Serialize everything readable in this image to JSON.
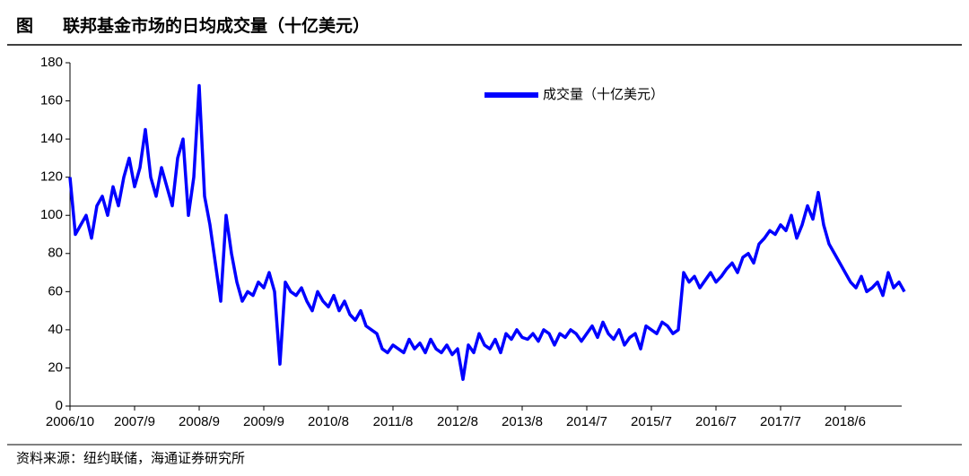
{
  "figure_label": "图",
  "source": "资料来源：纽约联储，海通证券研究所",
  "chart_data": {
    "type": "line",
    "title": "联邦基金市场的日均成交量（十亿美元）",
    "categories": [
      "2006/10",
      null,
      null,
      null,
      null,
      null,
      null,
      null,
      null,
      null,
      null,
      null,
      "2007/9",
      null,
      null,
      null,
      null,
      null,
      null,
      null,
      null,
      null,
      null,
      null,
      "2008/9",
      null,
      null,
      null,
      null,
      null,
      null,
      null,
      null,
      null,
      null,
      null,
      "2009/9",
      null,
      null,
      null,
      null,
      null,
      null,
      null,
      null,
      null,
      null,
      null,
      "2010/8",
      null,
      null,
      null,
      null,
      null,
      null,
      null,
      null,
      null,
      null,
      null,
      "2011/8",
      null,
      null,
      null,
      null,
      null,
      null,
      null,
      null,
      null,
      null,
      null,
      "2012/8",
      null,
      null,
      null,
      null,
      null,
      null,
      null,
      null,
      null,
      null,
      null,
      "2013/8",
      null,
      null,
      null,
      null,
      null,
      null,
      null,
      null,
      null,
      null,
      null,
      "2014/7",
      null,
      null,
      null,
      null,
      null,
      null,
      null,
      null,
      null,
      null,
      null,
      "2015/7",
      null,
      null,
      null,
      null,
      null,
      null,
      null,
      null,
      null,
      null,
      null,
      "2016/7",
      null,
      null,
      null,
      null,
      null,
      null,
      null,
      null,
      null,
      null,
      null,
      "2017/7",
      null,
      null,
      null,
      null,
      null,
      null,
      null,
      null,
      null,
      null,
      null,
      "2018/6",
      null,
      null,
      null,
      null,
      null,
      null,
      null,
      null,
      null,
      null,
      null
    ],
    "series": [
      {
        "name": "成交量（十亿美元）",
        "color": "#0000ff",
        "values": [
          120,
          90,
          95,
          100,
          88,
          105,
          110,
          100,
          115,
          105,
          120,
          130,
          115,
          125,
          145,
          120,
          110,
          125,
          115,
          105,
          130,
          140,
          100,
          120,
          168,
          110,
          95,
          75,
          55,
          100,
          80,
          65,
          55,
          60,
          58,
          65,
          62,
          70,
          60,
          22,
          65,
          60,
          58,
          62,
          55,
          50,
          60,
          55,
          52,
          58,
          50,
          55,
          48,
          45,
          50,
          42,
          40,
          38,
          30,
          28,
          32,
          30,
          28,
          35,
          30,
          33,
          28,
          35,
          30,
          28,
          32,
          27,
          30,
          14,
          32,
          28,
          38,
          32,
          30,
          35,
          28,
          38,
          35,
          40,
          36,
          35,
          38,
          34,
          40,
          38,
          32,
          38,
          36,
          40,
          38,
          34,
          38,
          42,
          36,
          44,
          38,
          35,
          40,
          32,
          36,
          38,
          30,
          42,
          40,
          38,
          44,
          42,
          38,
          40,
          70,
          65,
          68,
          62,
          66,
          70,
          65,
          68,
          72,
          75,
          70,
          78,
          80,
          75,
          85,
          88,
          92,
          90,
          95,
          92,
          100,
          88,
          95,
          105,
          98,
          112,
          95,
          85,
          80,
          75,
          70,
          65,
          62,
          68,
          60,
          62,
          65,
          58,
          70,
          62,
          65,
          60
        ]
      }
    ],
    "ylim": [
      0,
      180
    ],
    "yticks": [
      0,
      20,
      40,
      60,
      80,
      100,
      120,
      140,
      160,
      180
    ]
  }
}
